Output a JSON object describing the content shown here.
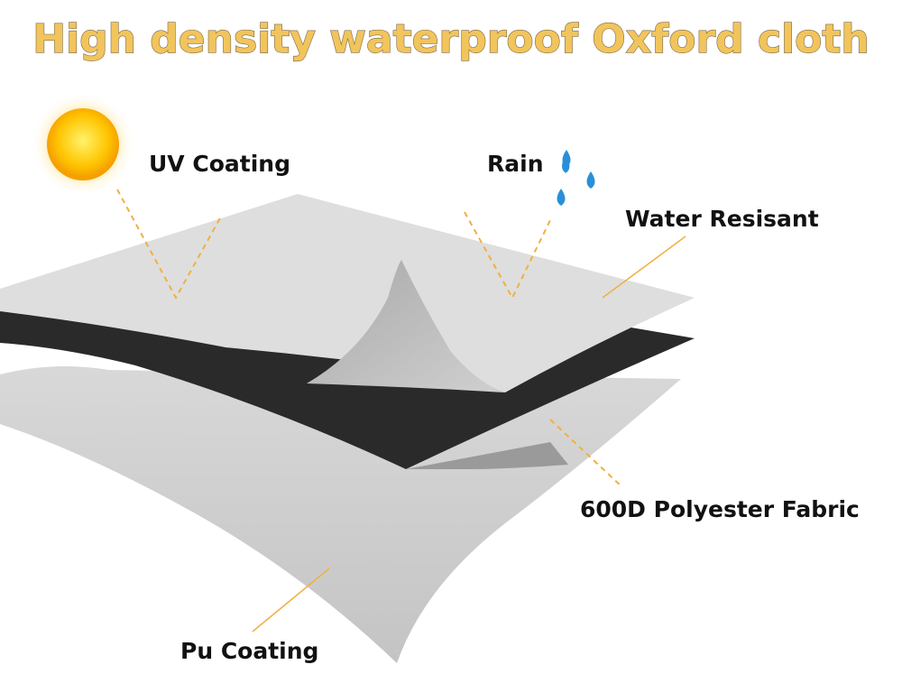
{
  "header": {
    "title": "High density waterproof Oxford cloth"
  },
  "labels": {
    "uv": "UV Coating",
    "rain": "Rain",
    "water": "Water Resisant",
    "fabric": "600D Polyester Fabric",
    "pu": "Pu Coating"
  }
}
